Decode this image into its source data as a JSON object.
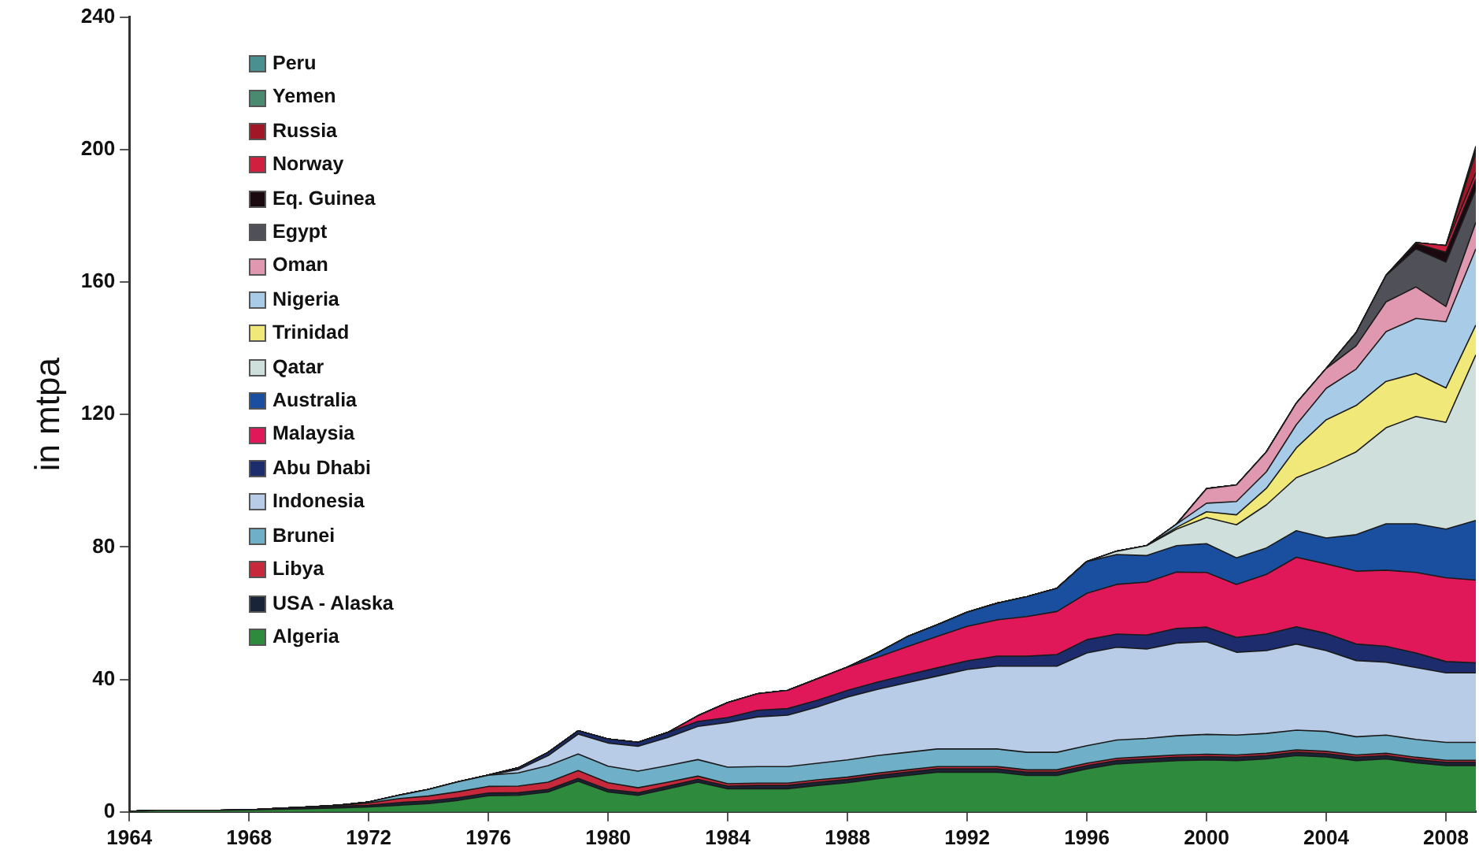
{
  "chart_data": {
    "type": "area",
    "stacked": true,
    "ylabel": "in mtpa",
    "x": [
      1964,
      1965,
      1966,
      1967,
      1968,
      1969,
      1970,
      1971,
      1972,
      1973,
      1974,
      1975,
      1976,
      1977,
      1978,
      1979,
      1980,
      1981,
      1982,
      1983,
      1984,
      1985,
      1986,
      1987,
      1988,
      1989,
      1990,
      1991,
      1992,
      1993,
      1994,
      1995,
      1996,
      1997,
      1998,
      1999,
      2000,
      2001,
      2002,
      2003,
      2004,
      2005,
      2006,
      2007,
      2008,
      2009
    ],
    "xlim": [
      1964,
      2009
    ],
    "xticks": [
      1964,
      1968,
      1972,
      1976,
      1980,
      1984,
      1988,
      1992,
      1996,
      2000,
      2004,
      2008
    ],
    "ylim": [
      0,
      240
    ],
    "yticks": [
      0,
      40,
      80,
      120,
      160,
      200,
      240
    ],
    "grid": false,
    "legend": "top left",
    "marker": "none",
    "series": [
      {
        "name": "Algeria",
        "color": "#2e8b3e",
        "values": [
          0.2,
          0.5,
          0.5,
          0.5,
          0.6,
          0.8,
          1,
          1.2,
          1.5,
          2,
          2.5,
          3.5,
          4.9,
          5,
          6,
          9.3,
          6,
          5,
          7,
          9,
          7,
          7,
          7,
          8,
          8.8,
          10,
          11,
          12,
          12,
          12,
          11,
          11,
          13,
          14.5,
          15,
          15.5,
          15.7,
          15.5,
          16,
          17,
          16.6,
          15.5,
          16,
          14.8,
          14,
          14
        ]
      },
      {
        "name": "USA - Alaska",
        "color": "#1a2438",
        "values": [
          0,
          0,
          0,
          0,
          0,
          0.3,
          0.5,
          0.5,
          0.5,
          0.8,
          0.8,
          0.8,
          0.8,
          0.8,
          0.8,
          0.8,
          0.8,
          0.8,
          0.8,
          0.8,
          0.8,
          1,
          1,
          1,
          1,
          1,
          1,
          1,
          1,
          1,
          1,
          1,
          1,
          1,
          1,
          1,
          1,
          1,
          1,
          1,
          1,
          1,
          1,
          1,
          1,
          1
        ]
      },
      {
        "name": "Libya",
        "color": "#c8283c",
        "values": [
          0,
          0,
          0,
          0,
          0,
          0,
          0,
          0.3,
          0.7,
          1.2,
          1.5,
          1.8,
          2,
          2,
          2.2,
          2.4,
          2,
          1.5,
          1.2,
          1,
          0.7,
          0.7,
          0.7,
          0.7,
          0.7,
          0.7,
          0.7,
          0.7,
          0.7,
          0.7,
          0.7,
          0.7,
          0.7,
          0.7,
          0.7,
          0.7,
          0.7,
          0.7,
          0.7,
          0.7,
          0.7,
          0.7,
          0.7,
          0.7,
          0.6,
          0.6
        ]
      },
      {
        "name": "Brunei",
        "color": "#6fb0c8",
        "values": [
          0,
          0,
          0,
          0,
          0,
          0,
          0,
          0,
          0.3,
          1,
          2,
          3,
          3.4,
          4,
          5,
          5,
          5,
          5,
          5,
          5,
          5,
          5,
          5,
          5,
          5.2,
          5.3,
          5.3,
          5.3,
          5.3,
          5.3,
          5.3,
          5.3,
          5.3,
          5.5,
          5.5,
          5.8,
          6,
          6,
          6,
          6,
          6,
          5.5,
          5.5,
          5.4,
          5.4,
          5.4
        ]
      },
      {
        "name": "Indonesia",
        "color": "#b8cce8",
        "values": [
          0,
          0,
          0,
          0,
          0,
          0,
          0,
          0,
          0,
          0,
          0,
          0,
          0,
          1,
          3,
          6,
          7,
          7.5,
          8.5,
          10,
          13.5,
          15,
          15.5,
          17,
          19,
          20,
          21,
          22,
          24,
          25,
          26,
          26,
          28,
          28,
          27,
          28,
          28,
          25,
          25,
          26,
          24.4,
          23,
          22,
          21.7,
          21,
          21
        ]
      },
      {
        "name": "Abu Dhabi",
        "color": "#1c2c6c",
        "values": [
          0,
          0,
          0,
          0,
          0,
          0,
          0,
          0,
          0,
          0,
          0,
          0,
          0,
          0.5,
          1,
          1,
          1.2,
          1.2,
          1.5,
          1.5,
          1.5,
          2,
          2,
          2,
          2,
          2.2,
          2.4,
          2.5,
          2.6,
          3,
          3,
          3.5,
          4,
          4,
          4.2,
          4.4,
          4.4,
          4.5,
          5,
          5.2,
          5.2,
          5,
          4.8,
          4.4,
          3.4,
          3
        ]
      },
      {
        "name": "Malaysia",
        "color": "#e0185a",
        "values": [
          0,
          0,
          0,
          0,
          0,
          0,
          0,
          0,
          0,
          0,
          0,
          0,
          0,
          0,
          0,
          0,
          0,
          0,
          0,
          1.7,
          4.5,
          5,
          5.5,
          6.5,
          7,
          7.5,
          8.5,
          9.5,
          10.4,
          11,
          12,
          13,
          14,
          15,
          16,
          17,
          16.5,
          16,
          18,
          21,
          21,
          22,
          23,
          24.3,
          25.3,
          25
        ]
      },
      {
        "name": "Australia",
        "color": "#1a4fa0",
        "values": [
          0,
          0,
          0,
          0,
          0,
          0,
          0,
          0,
          0,
          0,
          0,
          0,
          0,
          0,
          0,
          0,
          0,
          0,
          0,
          0,
          0,
          0,
          0,
          0,
          0,
          1.3,
          3,
          3.5,
          4.3,
          5,
          6,
          7,
          9.6,
          9,
          8,
          8,
          8.7,
          8,
          8,
          8,
          7.8,
          11,
          14,
          14.7,
          14.7,
          18
        ]
      },
      {
        "name": "Qatar",
        "color": "#cfe0dc",
        "values": [
          0,
          0,
          0,
          0,
          0,
          0,
          0,
          0,
          0,
          0,
          0,
          0,
          0,
          0,
          0,
          0,
          0,
          0,
          0,
          0,
          0,
          0,
          0,
          0,
          0,
          0,
          0,
          0,
          0,
          0,
          0,
          0,
          0,
          1,
          3,
          5,
          7.9,
          10,
          13,
          16,
          21.8,
          25,
          29,
          32.4,
          32.2,
          50
        ]
      },
      {
        "name": "Trinidad",
        "color": "#f0e878",
        "values": [
          0,
          0,
          0,
          0,
          0,
          0,
          0,
          0,
          0,
          0,
          0,
          0,
          0,
          0,
          0,
          0,
          0,
          0,
          0,
          0,
          0,
          0,
          0,
          0,
          0,
          0,
          0,
          0,
          0,
          0,
          0,
          0,
          0,
          0,
          0,
          0.5,
          1.7,
          3,
          5,
          9,
          13.9,
          14,
          14,
          13,
          10.4,
          9
        ]
      },
      {
        "name": "Nigeria",
        "color": "#a8cce8",
        "values": [
          0,
          0,
          0,
          0,
          0,
          0,
          0,
          0,
          0,
          0,
          0,
          0,
          0,
          0,
          0,
          0,
          0,
          0,
          0,
          0,
          0,
          0,
          0,
          0,
          0,
          0,
          0,
          0,
          0,
          0,
          0,
          0,
          0,
          0,
          0,
          1,
          2.6,
          4,
          5,
          7,
          9.5,
          11,
          15,
          16.6,
          20,
          23
        ]
      },
      {
        "name": "Oman",
        "color": "#e098b0",
        "values": [
          0,
          0,
          0,
          0,
          0,
          0,
          0,
          0,
          0,
          0,
          0,
          0,
          0,
          0,
          0,
          0,
          0,
          0,
          0,
          0,
          0,
          0,
          0,
          0,
          0,
          0,
          0,
          0,
          0,
          0,
          0,
          0,
          0,
          0,
          0,
          0,
          4.4,
          5,
          6,
          6.5,
          6,
          7,
          9,
          9.5,
          4.6,
          8
        ]
      },
      {
        "name": "Egypt",
        "color": "#505058",
        "values": [
          0,
          0,
          0,
          0,
          0,
          0,
          0,
          0,
          0,
          0,
          0,
          0,
          0,
          0,
          0,
          0,
          0,
          0,
          0,
          0,
          0,
          0,
          0,
          0,
          0,
          0,
          0,
          0,
          0,
          0,
          0,
          0,
          0,
          0,
          0,
          0,
          0,
          0,
          0,
          0,
          0,
          4,
          8,
          11.5,
          13.4,
          10
        ]
      },
      {
        "name": "Eq. Guinea",
        "color": "#1a0a10",
        "values": [
          0,
          0,
          0,
          0,
          0,
          0,
          0,
          0,
          0,
          0,
          0,
          0,
          0,
          0,
          0,
          0,
          0,
          0,
          0,
          0,
          0,
          0,
          0,
          0,
          0,
          0,
          0,
          0,
          0,
          0,
          0,
          0,
          0,
          0,
          0,
          0,
          0,
          0,
          0,
          0,
          0,
          0,
          0,
          1.6,
          3,
          3
        ]
      },
      {
        "name": "Norway",
        "color": "#d02040",
        "values": [
          0,
          0,
          0,
          0,
          0,
          0,
          0,
          0,
          0,
          0,
          0,
          0,
          0,
          0,
          0,
          0,
          0,
          0,
          0,
          0,
          0,
          0,
          0,
          0,
          0,
          0,
          0,
          0,
          0,
          0,
          0,
          0,
          0,
          0,
          0,
          0,
          0,
          0,
          0,
          0,
          0,
          0,
          0,
          0.3,
          2,
          2
        ]
      },
      {
        "name": "Russia",
        "color": "#a01828",
        "values": [
          0,
          0,
          0,
          0,
          0,
          0,
          0,
          0,
          0,
          0,
          0,
          0,
          0,
          0,
          0,
          0,
          0,
          0,
          0,
          0,
          0,
          0,
          0,
          0,
          0,
          0,
          0,
          0,
          0,
          0,
          0,
          0,
          0,
          0,
          0,
          0,
          0,
          0,
          0,
          0,
          0,
          0,
          0,
          0,
          0,
          6
        ]
      },
      {
        "name": "Yemen",
        "color": "#4a8a70",
        "values": [
          0,
          0,
          0,
          0,
          0,
          0,
          0,
          0,
          0,
          0,
          0,
          0,
          0,
          0,
          0,
          0,
          0,
          0,
          0,
          0,
          0,
          0,
          0,
          0,
          0,
          0,
          0,
          0,
          0,
          0,
          0,
          0,
          0,
          0,
          0,
          0,
          0,
          0,
          0,
          0,
          0,
          0,
          0,
          0,
          0,
          1
        ]
      },
      {
        "name": "Peru",
        "color": "#4a9090",
        "values": [
          0,
          0,
          0,
          0,
          0,
          0,
          0,
          0,
          0,
          0,
          0,
          0,
          0,
          0,
          0,
          0,
          0,
          0,
          0,
          0,
          0,
          0,
          0,
          0,
          0,
          0,
          0,
          0,
          0,
          0,
          0,
          0,
          0,
          0,
          0,
          0,
          0,
          0,
          0,
          0,
          0,
          0,
          0,
          0,
          0,
          1
        ]
      }
    ]
  }
}
